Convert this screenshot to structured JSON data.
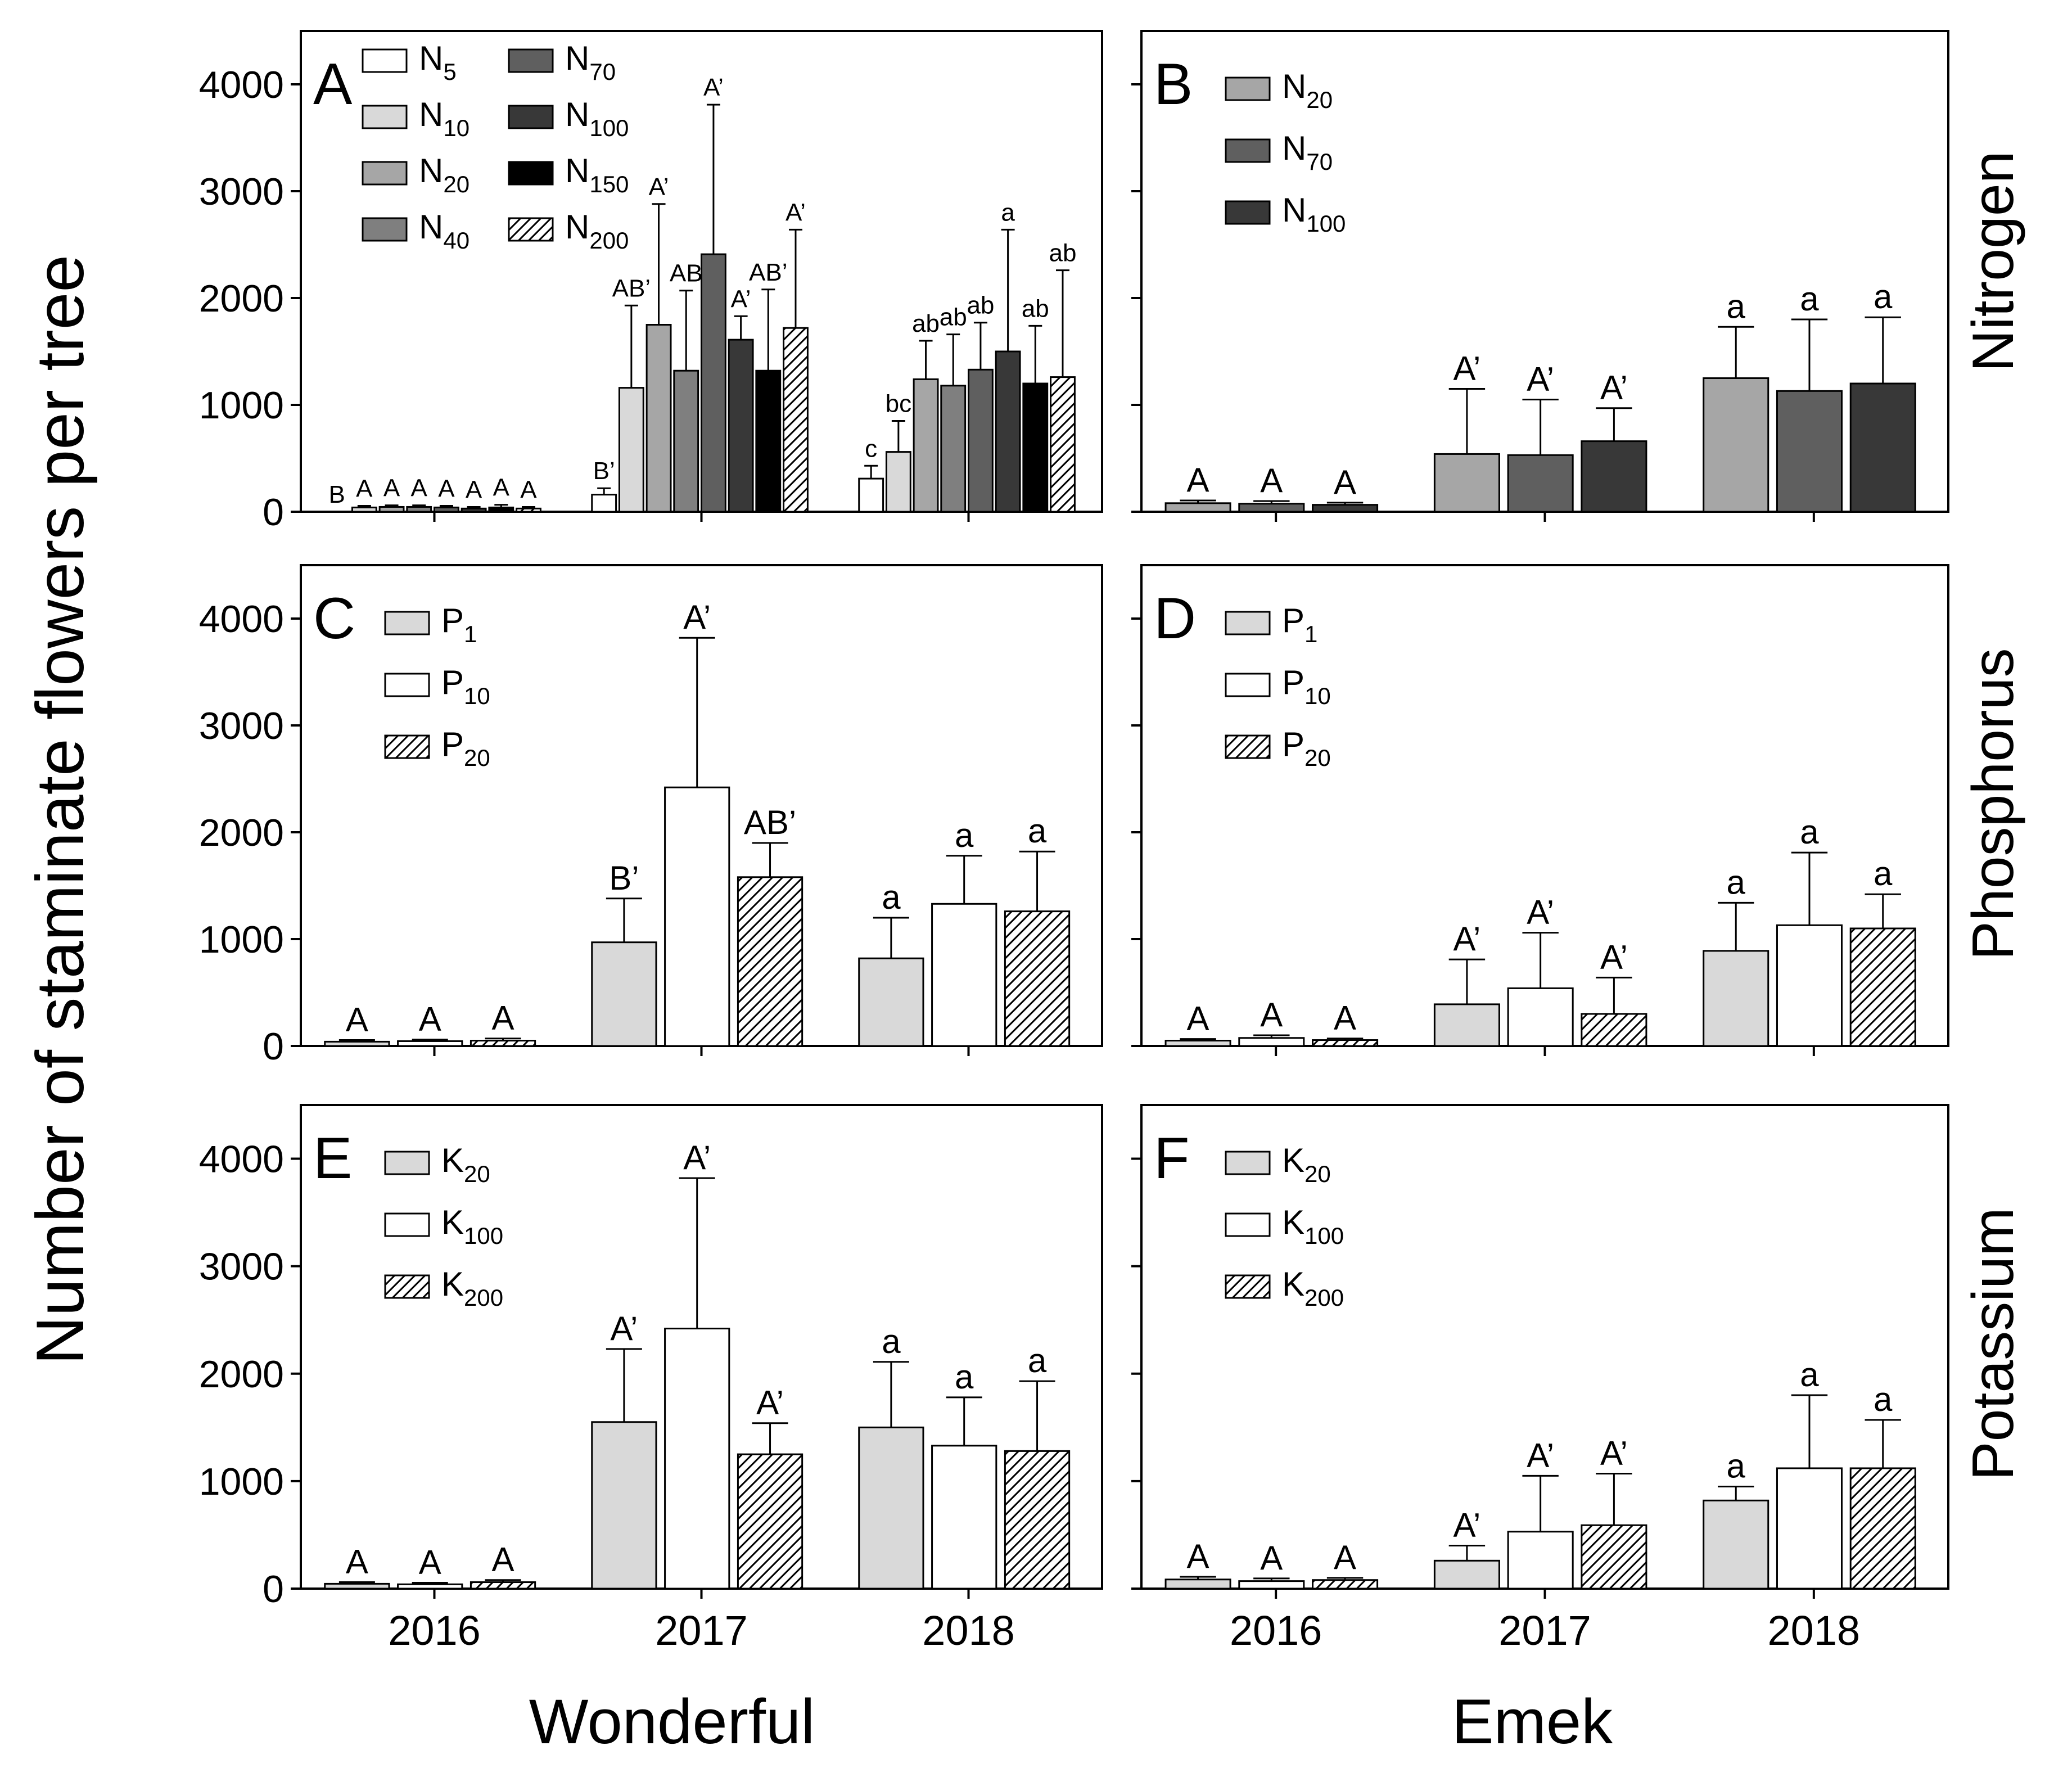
{
  "figure": {
    "ylabel": "Number of staminate flowers per tree",
    "cultivars": [
      "Wonderful",
      "Emek"
    ],
    "rows": [
      "Nitrogen",
      "Phosphorus",
      "Potassium"
    ]
  },
  "styles": {
    "N5": {
      "fill": "#ffffff",
      "hatch": false
    },
    "N10": {
      "fill": "#d9d9d9",
      "hatch": false
    },
    "N20": {
      "fill": "#a6a6a6",
      "hatch": false
    },
    "N40": {
      "fill": "#7f7f7f",
      "hatch": false
    },
    "N70": {
      "fill": "#5f5f5f",
      "hatch": false
    },
    "N100": {
      "fill": "#383838",
      "hatch": false
    },
    "N150": {
      "fill": "#000000",
      "hatch": false
    },
    "N200": {
      "fill": "#ffffff",
      "hatch": true
    },
    "P1": {
      "fill": "#d9d9d9",
      "hatch": false
    },
    "P10": {
      "fill": "#ffffff",
      "hatch": false
    },
    "P20": {
      "fill": "#ffffff",
      "hatch": true
    },
    "K20": {
      "fill": "#d9d9d9",
      "hatch": false
    },
    "K100": {
      "fill": "#ffffff",
      "hatch": false
    },
    "K200": {
      "fill": "#ffffff",
      "hatch": true
    }
  },
  "chart_data": [
    {
      "panel": "A",
      "type": "bar",
      "cultivar": "Wonderful",
      "nutrient": "Nitrogen",
      "categories": [
        "2016",
        "2017",
        "2018"
      ],
      "ylim": [
        0,
        4500
      ],
      "yticks": [
        0,
        1000,
        2000,
        3000,
        4000
      ],
      "show_x_labels": false,
      "legend_columns": 2,
      "legend": [
        {
          "key": "N5",
          "base": "N",
          "sub": "5"
        },
        {
          "key": "N10",
          "base": "N",
          "sub": "10"
        },
        {
          "key": "N20",
          "base": "N",
          "sub": "20"
        },
        {
          "key": "N40",
          "base": "N",
          "sub": "40"
        },
        {
          "key": "N70",
          "base": "N",
          "sub": "70"
        },
        {
          "key": "N100",
          "base": "N",
          "sub": "100"
        },
        {
          "key": "N150",
          "base": "N",
          "sub": "150"
        },
        {
          "key": "N200",
          "base": "N",
          "sub": "200"
        }
      ],
      "series": [
        {
          "key": "N5",
          "values": [
            0,
            160,
            310
          ],
          "errors": [
            0,
            60,
            120
          ],
          "letters": [
            "B",
            "B’",
            "c"
          ]
        },
        {
          "key": "N10",
          "values": [
            40,
            1160,
            560
          ],
          "errors": [
            15,
            770,
            290
          ],
          "letters": [
            "A",
            "AB’",
            "bc"
          ]
        },
        {
          "key": "N20",
          "values": [
            45,
            1750,
            1240
          ],
          "errors": [
            15,
            1130,
            360
          ],
          "letters": [
            "A",
            "A’",
            "ab"
          ]
        },
        {
          "key": "N40",
          "values": [
            45,
            1320,
            1180
          ],
          "errors": [
            15,
            750,
            480
          ],
          "letters": [
            "A",
            "AB",
            "ab"
          ]
        },
        {
          "key": "N70",
          "values": [
            40,
            2410,
            1330
          ],
          "errors": [
            15,
            1400,
            440
          ],
          "letters": [
            "A",
            "A’",
            "ab"
          ]
        },
        {
          "key": "N100",
          "values": [
            30,
            1610,
            1500
          ],
          "errors": [
            15,
            220,
            1140
          ],
          "letters": [
            "A",
            "A’",
            "a"
          ]
        },
        {
          "key": "N150",
          "values": [
            40,
            1320,
            1200
          ],
          "errors": [
            25,
            760,
            540
          ],
          "letters": [
            "A",
            "AB’",
            "ab"
          ]
        },
        {
          "key": "N200",
          "values": [
            30,
            1720,
            1260
          ],
          "errors": [
            15,
            920,
            1000
          ],
          "letters": [
            "A",
            "A’",
            "ab"
          ]
        }
      ]
    },
    {
      "panel": "B",
      "type": "bar",
      "cultivar": "Emek",
      "nutrient": "Nitrogen",
      "categories": [
        "2016",
        "2017",
        "2018"
      ],
      "ylim": [
        0,
        4500
      ],
      "yticks": [
        0,
        1000,
        2000,
        3000,
        4000
      ],
      "show_x_labels": false,
      "legend_columns": 1,
      "legend": [
        {
          "key": "N20",
          "base": "N",
          "sub": "20"
        },
        {
          "key": "N70",
          "base": "N",
          "sub": "70"
        },
        {
          "key": "N100",
          "base": "N",
          "sub": "100"
        }
      ],
      "series": [
        {
          "key": "N20",
          "values": [
            80,
            540,
            1250
          ],
          "errors": [
            25,
            610,
            480
          ],
          "letters": [
            "A",
            "A’",
            "a"
          ]
        },
        {
          "key": "N70",
          "values": [
            75,
            530,
            1130
          ],
          "errors": [
            25,
            520,
            670
          ],
          "letters": [
            "A",
            "A’",
            "a"
          ]
        },
        {
          "key": "N100",
          "values": [
            65,
            660,
            1200
          ],
          "errors": [
            20,
            310,
            620
          ],
          "letters": [
            "A",
            "A’",
            "a"
          ]
        }
      ]
    },
    {
      "panel": "C",
      "type": "bar",
      "cultivar": "Wonderful",
      "nutrient": "Phosphorus",
      "categories": [
        "2016",
        "2017",
        "2018"
      ],
      "ylim": [
        0,
        4500
      ],
      "yticks": [
        0,
        1000,
        2000,
        3000,
        4000
      ],
      "show_x_labels": false,
      "legend_columns": 1,
      "legend": [
        {
          "key": "P1",
          "base": "P",
          "sub": "1"
        },
        {
          "key": "P10",
          "base": "P",
          "sub": "10"
        },
        {
          "key": "P20",
          "base": "P",
          "sub": "20"
        }
      ],
      "series": [
        {
          "key": "P1",
          "values": [
            40,
            970,
            820
          ],
          "errors": [
            15,
            410,
            380
          ],
          "letters": [
            "A",
            "B’",
            "a"
          ]
        },
        {
          "key": "P10",
          "values": [
            45,
            2420,
            1330
          ],
          "errors": [
            15,
            1400,
            450
          ],
          "letters": [
            "A",
            "A’",
            "a"
          ]
        },
        {
          "key": "P20",
          "values": [
            50,
            1580,
            1260
          ],
          "errors": [
            20,
            320,
            560
          ],
          "letters": [
            "A",
            "AB’",
            "a"
          ]
        }
      ]
    },
    {
      "panel": "D",
      "type": "bar",
      "cultivar": "Emek",
      "nutrient": "Phosphorus",
      "categories": [
        "2016",
        "2017",
        "2018"
      ],
      "ylim": [
        0,
        4500
      ],
      "yticks": [
        0,
        1000,
        2000,
        3000,
        4000
      ],
      "show_x_labels": false,
      "legend_columns": 1,
      "legend": [
        {
          "key": "P1",
          "base": "P",
          "sub": "1"
        },
        {
          "key": "P10",
          "base": "P",
          "sub": "10"
        },
        {
          "key": "P20",
          "base": "P",
          "sub": "20"
        }
      ],
      "series": [
        {
          "key": "P1",
          "values": [
            50,
            390,
            890
          ],
          "errors": [
            15,
            420,
            450
          ],
          "letters": [
            "A",
            "A’",
            "a"
          ]
        },
        {
          "key": "P10",
          "values": [
            75,
            540,
            1130
          ],
          "errors": [
            25,
            520,
            680
          ],
          "letters": [
            "A",
            "A’",
            "a"
          ]
        },
        {
          "key": "P20",
          "values": [
            55,
            300,
            1100
          ],
          "errors": [
            15,
            340,
            320
          ],
          "letters": [
            "A",
            "A’",
            "a"
          ]
        }
      ]
    },
    {
      "panel": "E",
      "type": "bar",
      "cultivar": "Wonderful",
      "nutrient": "Potassium",
      "categories": [
        "2016",
        "2017",
        "2018"
      ],
      "ylim": [
        0,
        4500
      ],
      "yticks": [
        0,
        1000,
        2000,
        3000,
        4000
      ],
      "show_x_labels": true,
      "legend_columns": 1,
      "legend": [
        {
          "key": "K20",
          "base": "K",
          "sub": "20"
        },
        {
          "key": "K100",
          "base": "K",
          "sub": "100"
        },
        {
          "key": "K200",
          "base": "K",
          "sub": "200"
        }
      ],
      "series": [
        {
          "key": "K20",
          "values": [
            45,
            1550,
            1500
          ],
          "errors": [
            15,
            680,
            610
          ],
          "letters": [
            "A",
            "A’",
            "a"
          ]
        },
        {
          "key": "K100",
          "values": [
            40,
            2420,
            1330
          ],
          "errors": [
            15,
            1400,
            450
          ],
          "letters": [
            "A",
            "A’",
            "a"
          ]
        },
        {
          "key": "K200",
          "values": [
            60,
            1250,
            1280
          ],
          "errors": [
            20,
            290,
            650
          ],
          "letters": [
            "A",
            "A’",
            "a"
          ]
        }
      ]
    },
    {
      "panel": "F",
      "type": "bar",
      "cultivar": "Emek",
      "nutrient": "Potassium",
      "categories": [
        "2016",
        "2017",
        "2018"
      ],
      "ylim": [
        0,
        4500
      ],
      "yticks": [
        0,
        1000,
        2000,
        3000,
        4000
      ],
      "show_x_labels": true,
      "legend_columns": 1,
      "legend": [
        {
          "key": "K20",
          "base": "K",
          "sub": "20"
        },
        {
          "key": "K100",
          "base": "K",
          "sub": "100"
        },
        {
          "key": "K200",
          "base": "K",
          "sub": "200"
        }
      ],
      "series": [
        {
          "key": "K20",
          "values": [
            85,
            260,
            820
          ],
          "errors": [
            25,
            140,
            130
          ],
          "letters": [
            "A",
            "A’",
            "a"
          ]
        },
        {
          "key": "K100",
          "values": [
            70,
            530,
            1120
          ],
          "errors": [
            25,
            520,
            680
          ],
          "letters": [
            "A",
            "A’",
            "a"
          ]
        },
        {
          "key": "K200",
          "values": [
            80,
            590,
            1120
          ],
          "errors": [
            20,
            480,
            450
          ],
          "letters": [
            "A",
            "A’",
            "a"
          ]
        }
      ]
    }
  ]
}
